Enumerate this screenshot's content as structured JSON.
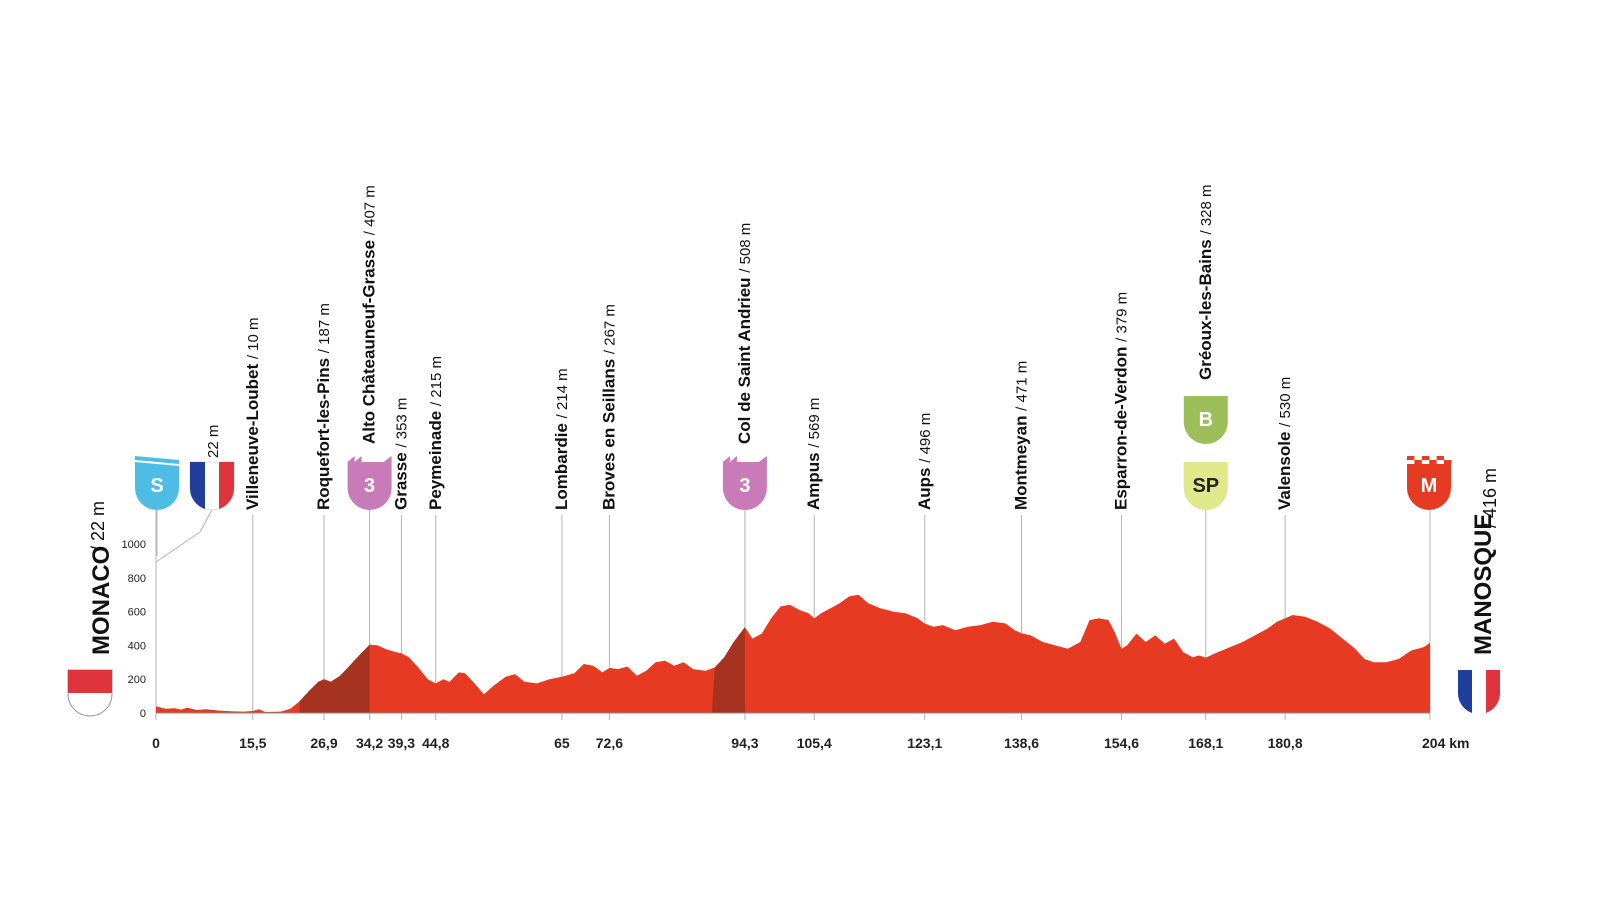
{
  "colors": {
    "profile": "#e63a22",
    "climb": "#a63320",
    "kom": "#c97ab8",
    "start": "#4dbde6",
    "bonus": "#9cbf5a",
    "sprint": "#dfe88a",
    "finish": "#e63a22",
    "guide": "#b5b5b5"
  },
  "start": {
    "name": "MONACO",
    "alt": "/ 22 m",
    "badge": "S",
    "flag": "monaco-flag"
  },
  "finish": {
    "name": "MANOSQUE",
    "alt": "/ 416 m",
    "badge": "M",
    "flag": "france-flag"
  },
  "border": {
    "alt": "22 m",
    "km": 7,
    "flag": "france-flag"
  },
  "chart_data": {
    "type": "area",
    "xlabel": "",
    "ylabel": "",
    "xlim": [
      0,
      204
    ],
    "ylim": [
      0,
      1000
    ],
    "yticks": [
      "0",
      "200",
      "400",
      "600",
      "800",
      "1000"
    ],
    "x_unit": "km",
    "profile": [
      [
        0,
        40
      ],
      [
        1.5,
        25
      ],
      [
        3,
        28
      ],
      [
        4,
        20
      ],
      [
        5,
        32
      ],
      [
        6.5,
        18
      ],
      [
        8,
        22
      ],
      [
        10,
        15
      ],
      [
        12,
        10
      ],
      [
        14,
        8
      ],
      [
        15.5,
        12
      ],
      [
        16.5,
        22
      ],
      [
        17.5,
        6
      ],
      [
        20,
        8
      ],
      [
        21.5,
        25
      ],
      [
        23,
        70
      ],
      [
        24.5,
        130
      ],
      [
        26,
        185
      ],
      [
        26.9,
        200
      ],
      [
        28,
        185
      ],
      [
        29.5,
        220
      ],
      [
        31,
        280
      ],
      [
        32.5,
        340
      ],
      [
        34.2,
        405
      ],
      [
        35.5,
        400
      ],
      [
        37,
        375
      ],
      [
        38.5,
        360
      ],
      [
        39.3,
        353
      ],
      [
        40.5,
        330
      ],
      [
        42,
        270
      ],
      [
        43.5,
        200
      ],
      [
        44.8,
        175
      ],
      [
        46,
        200
      ],
      [
        47,
        185
      ],
      [
        48.5,
        240
      ],
      [
        49.5,
        235
      ],
      [
        51,
        175
      ],
      [
        52.5,
        110
      ],
      [
        54,
        160
      ],
      [
        56,
        215
      ],
      [
        57.5,
        230
      ],
      [
        59,
        185
      ],
      [
        61,
        175
      ],
      [
        63,
        200
      ],
      [
        65,
        214
      ],
      [
        67,
        235
      ],
      [
        68.5,
        290
      ],
      [
        70,
        280
      ],
      [
        71.5,
        240
      ],
      [
        72.6,
        267
      ],
      [
        74,
        260
      ],
      [
        75.5,
        275
      ],
      [
        77,
        220
      ],
      [
        78.5,
        250
      ],
      [
        80,
        300
      ],
      [
        81.5,
        310
      ],
      [
        83,
        280
      ],
      [
        84.5,
        300
      ],
      [
        86,
        260
      ],
      [
        88,
        250
      ],
      [
        89.5,
        270
      ],
      [
        91,
        330
      ],
      [
        92.5,
        420
      ],
      [
        94.3,
        508
      ],
      [
        95.5,
        440
      ],
      [
        97,
        470
      ],
      [
        98.5,
        560
      ],
      [
        100,
        630
      ],
      [
        101.5,
        640
      ],
      [
        103,
        610
      ],
      [
        104.5,
        590
      ],
      [
        105.4,
        560
      ],
      [
        106.5,
        590
      ],
      [
        108,
        620
      ],
      [
        109.5,
        650
      ],
      [
        111,
        690
      ],
      [
        112.5,
        700
      ],
      [
        114,
        650
      ],
      [
        116,
        620
      ],
      [
        118,
        600
      ],
      [
        120,
        590
      ],
      [
        122,
        560
      ],
      [
        123,
        530
      ],
      [
        124.5,
        510
      ],
      [
        126,
        520
      ],
      [
        128,
        490
      ],
      [
        130,
        510
      ],
      [
        132,
        520
      ],
      [
        134,
        540
      ],
      [
        136,
        530
      ],
      [
        137.5,
        490
      ],
      [
        138.6,
        471
      ],
      [
        140,
        460
      ],
      [
        142,
        420
      ],
      [
        144,
        400
      ],
      [
        146,
        380
      ],
      [
        148,
        420
      ],
      [
        149.5,
        550
      ],
      [
        151,
        560
      ],
      [
        152.5,
        550
      ],
      [
        153.5,
        480
      ],
      [
        154.6,
        380
      ],
      [
        155.5,
        400
      ],
      [
        157,
        470
      ],
      [
        158.5,
        420
      ],
      [
        160,
        460
      ],
      [
        161.5,
        410
      ],
      [
        163,
        440
      ],
      [
        164.5,
        360
      ],
      [
        166,
        330
      ],
      [
        167,
        340
      ],
      [
        168.1,
        328
      ],
      [
        170,
        360
      ],
      [
        172,
        390
      ],
      [
        174,
        420
      ],
      [
        176,
        460
      ],
      [
        178,
        500
      ],
      [
        179.5,
        540
      ],
      [
        180.8,
        560
      ],
      [
        182,
        580
      ],
      [
        184,
        570
      ],
      [
        186,
        540
      ],
      [
        188,
        500
      ],
      [
        190,
        440
      ],
      [
        192,
        380
      ],
      [
        193.5,
        320
      ],
      [
        195,
        300
      ],
      [
        197,
        300
      ],
      [
        199,
        320
      ],
      [
        201,
        370
      ],
      [
        203,
        390
      ],
      [
        204,
        416
      ]
    ],
    "climbs": [
      [
        23,
        34.2
      ],
      [
        89,
        94.3
      ]
    ],
    "waypoints": [
      {
        "km": 15.5,
        "tick": "15,5",
        "name": "Villeneuve-Loubet",
        "alt": "/ 10 m"
      },
      {
        "km": 26.9,
        "tick": "26,9",
        "name": "Roquefort-les-Pins",
        "alt": "/ 187 m"
      },
      {
        "km": 34.2,
        "tick": "34,2",
        "name": "Alto Châteauneuf-Grasse",
        "alt": "/ 407 m",
        "badge": "3",
        "badge_type": "kom"
      },
      {
        "km": 39.3,
        "tick": "39,3",
        "name": "Grasse",
        "alt": "/ 353 m"
      },
      {
        "km": 44.8,
        "tick": "44,8",
        "name": "Peymeinade",
        "alt": "/ 215 m"
      },
      {
        "km": 65,
        "tick": "65",
        "name": "Lombardie",
        "alt": "/ 214 m"
      },
      {
        "km": 72.6,
        "tick": "72,6",
        "name": "Broves en Seillans",
        "alt": "/ 267 m"
      },
      {
        "km": 94.3,
        "tick": "94,3",
        "name": "Col de Saint Andrieu",
        "alt": "/ 508 m",
        "badge": "3",
        "badge_type": "kom"
      },
      {
        "km": 105.4,
        "tick": "105,4",
        "name": "Ampus",
        "alt": "/ 569 m"
      },
      {
        "km": 123.1,
        "tick": "123,1",
        "name": "Aups",
        "alt": "/ 496 m"
      },
      {
        "km": 138.6,
        "tick": "138,6",
        "name": "Montmeyan",
        "alt": "/ 471 m"
      },
      {
        "km": 154.6,
        "tick": "154,6",
        "name": "Esparron-de-Verdon",
        "alt": "/ 379 m"
      },
      {
        "km": 168.1,
        "tick": "168,1",
        "name": "Gréoux-les-Bains",
        "alt": "/ 328 m",
        "badge": "SP",
        "badge_type": "sprint",
        "badge2": "B",
        "badge2_type": "bonus"
      },
      {
        "km": 180.8,
        "tick": "180,8",
        "name": "Valensole",
        "alt": "/ 530 m"
      }
    ],
    "x_start_tick": "0",
    "x_end_tick": "204 km"
  }
}
